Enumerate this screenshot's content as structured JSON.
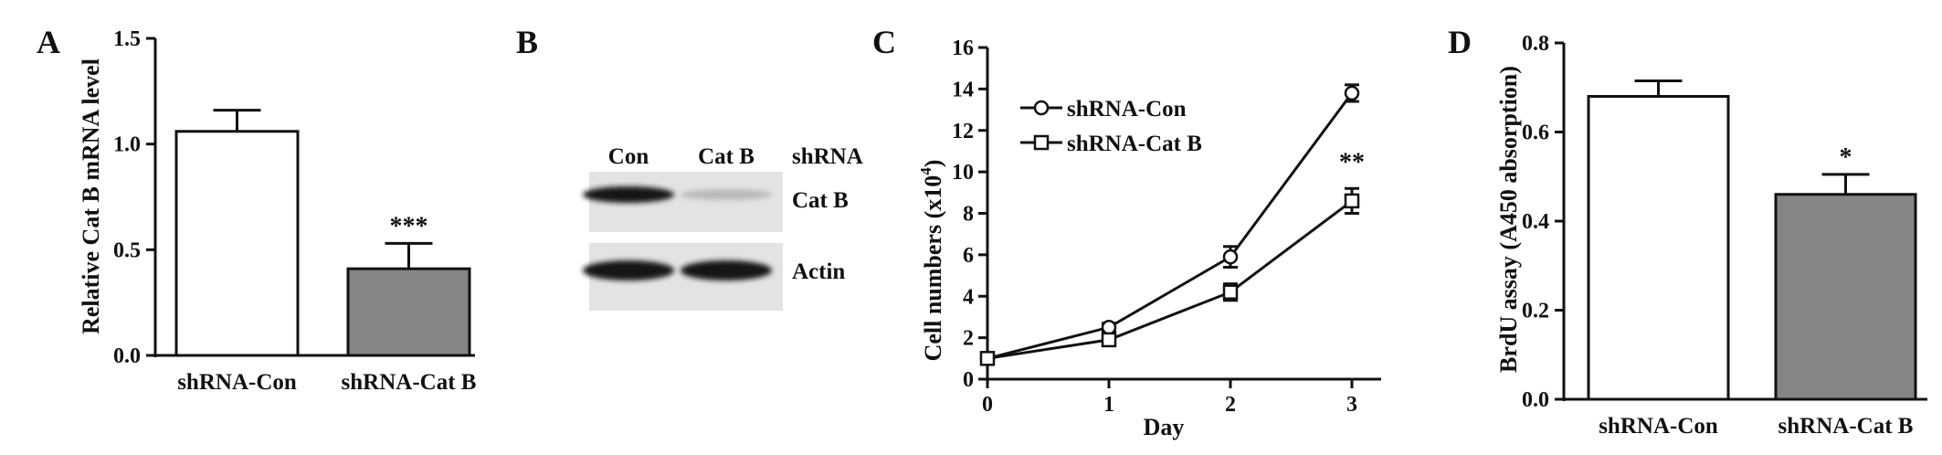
{
  "figure": {
    "panel_letters": [
      "A",
      "B",
      "C",
      "D"
    ]
  },
  "chart_data": [
    {
      "panel": "A",
      "type": "bar",
      "categories": [
        "shRNA-Con",
        "shRNA-Cat B"
      ],
      "values": [
        1.06,
        0.41
      ],
      "errors": [
        0.1,
        0.12
      ],
      "bar_colors": [
        "#ffffff",
        "#858585"
      ],
      "significance": [
        "",
        "***"
      ],
      "title": "",
      "xlabel": "",
      "ylabel": "Relative Cat B mRNA level",
      "ylim": [
        0,
        1.5
      ],
      "yticks": [
        "0.0",
        "0.5",
        "1.0",
        "1.5"
      ],
      "grid": false
    },
    {
      "panel": "B",
      "type": "western-blot",
      "lane_labels": [
        "Con",
        "Cat B"
      ],
      "lane_group_label": "shRNA",
      "rows": [
        {
          "label": "Cat B",
          "band_intensity": [
            1.0,
            0.2
          ]
        },
        {
          "label": "Actin",
          "band_intensity": [
            1.0,
            1.0
          ]
        }
      ]
    },
    {
      "panel": "C",
      "type": "line",
      "x": [
        0,
        1,
        2,
        3
      ],
      "series": [
        {
          "name": "shRNA-Con",
          "marker": "circle",
          "values": [
            1.0,
            2.5,
            5.9,
            13.8
          ],
          "errors": [
            0.1,
            0.2,
            0.5,
            0.4
          ]
        },
        {
          "name": "shRNA-Cat B",
          "marker": "square",
          "values": [
            1.0,
            1.9,
            4.2,
            8.6
          ],
          "errors": [
            0.1,
            0.2,
            0.4,
            0.6
          ]
        }
      ],
      "annotation": "**",
      "title": "",
      "xlabel": "Day",
      "ylabel_main": "Cell numbers (x10",
      "ylabel_sup": "4",
      "ylabel_end": ")",
      "xlim": [
        0,
        3
      ],
      "ylim": [
        0,
        16
      ],
      "xticks": [
        "0",
        "1",
        "2",
        "3"
      ],
      "yticks": [
        "0",
        "2",
        "4",
        "6",
        "8",
        "10",
        "12",
        "14",
        "16"
      ],
      "legend_position": "top-left",
      "grid": false
    },
    {
      "panel": "D",
      "type": "bar",
      "categories": [
        "shRNA-Con",
        "shRNA-Cat B"
      ],
      "values": [
        0.68,
        0.46
      ],
      "errors": [
        0.035,
        0.045
      ],
      "bar_colors": [
        "#ffffff",
        "#858585"
      ],
      "significance": [
        "",
        "*"
      ],
      "title": "",
      "xlabel": "",
      "ylabel": "BrdU assay (A450 absorption)",
      "ylim": [
        0,
        0.8
      ],
      "yticks": [
        "0.0",
        "0.2",
        "0.4",
        "0.6",
        "0.8"
      ],
      "grid": false
    }
  ]
}
